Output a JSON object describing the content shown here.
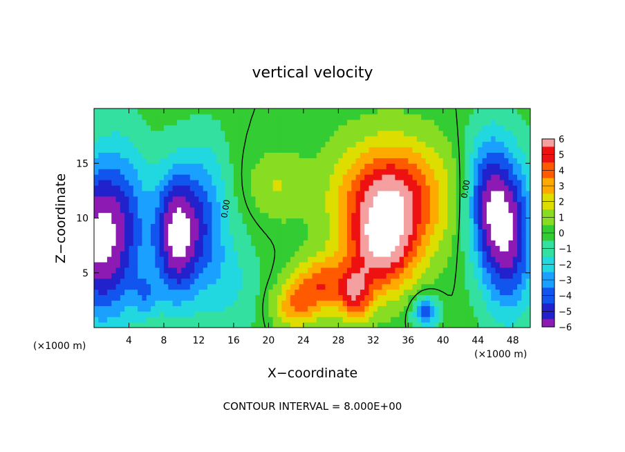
{
  "chart_data": {
    "type": "heatmap",
    "title": "vertical velocity",
    "xlabel": "X−coordinate",
    "ylabel": "Z−coordinate",
    "x_unit_left": "(×1000 m)",
    "x_unit_right": "(×1000 m)",
    "xlim": [
      0,
      50
    ],
    "ylim": [
      0,
      20
    ],
    "x_ticks": [
      4,
      8,
      12,
      16,
      20,
      24,
      28,
      32,
      36,
      40,
      44,
      48
    ],
    "x_tick_labels": [
      "4",
      "8",
      "12",
      "16",
      "20",
      "24",
      "28",
      "32",
      "36",
      "40",
      "44",
      "48"
    ],
    "y_ticks": [
      5,
      10,
      15
    ],
    "y_tick_labels": [
      "5",
      "10",
      "15"
    ],
    "colorbar": {
      "min": -6,
      "max": 6,
      "ticks": [
        6,
        5,
        4,
        3,
        2,
        1,
        0,
        -1,
        -2,
        -3,
        -4,
        -5,
        -6
      ],
      "tick_labels": [
        "6",
        "5",
        "4",
        "3",
        "2",
        "1",
        "0",
        "−1",
        "−2",
        "−3",
        "−4",
        "−5",
        "−6"
      ]
    },
    "contour_label": "0.00",
    "footer": "CONTOUR INTERVAL = 8.000E+00",
    "grid": false,
    "features": [
      {
        "x": 0,
        "z": 8,
        "sx": 3,
        "sz": 7,
        "w": -6
      },
      {
        "x": 3.5,
        "z": 9,
        "sx": 3,
        "sz": 8,
        "w": -4
      },
      {
        "x": 9.5,
        "z": 8.5,
        "sx": 2.6,
        "sz": 6,
        "w": -7
      },
      {
        "x": 13,
        "z": 10,
        "sx": 2.5,
        "sz": 7,
        "w": -3
      },
      {
        "x": 6,
        "z": 3,
        "sx": 1.5,
        "sz": 2,
        "w": -2
      },
      {
        "x": 47.5,
        "z": 8.5,
        "sx": 3,
        "sz": 7,
        "w": -6
      },
      {
        "x": 45,
        "z": 12,
        "sx": 2.5,
        "sz": 6,
        "w": -4
      },
      {
        "x": 34,
        "z": 12,
        "sx": 6,
        "sz": 5,
        "w": 6
      },
      {
        "x": 33,
        "z": 7,
        "sx": 4,
        "sz": 4,
        "w": 5
      },
      {
        "x": 26,
        "z": 4,
        "sx": 3,
        "sz": 2.5,
        "w": 4
      },
      {
        "x": 23,
        "z": 2,
        "sx": 2.5,
        "sz": 2,
        "w": 3
      },
      {
        "x": 30,
        "z": 3,
        "sx": 2,
        "sz": 2.5,
        "w": 4
      },
      {
        "x": 21,
        "z": 13,
        "sx": 3,
        "sz": 3,
        "w": 1.5
      },
      {
        "x": 38,
        "z": 1.5,
        "sx": 1.5,
        "sz": 1.5,
        "w": -4
      },
      {
        "x": 16,
        "z": 4,
        "sx": 3,
        "sz": 5,
        "w": -1.5
      }
    ]
  }
}
